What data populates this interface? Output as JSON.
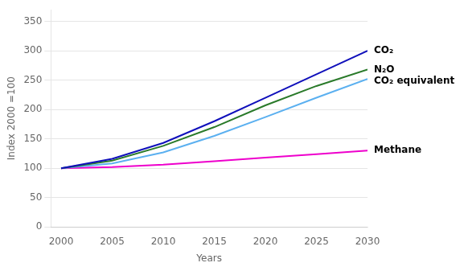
{
  "chart_data": {
    "type": "line",
    "x": [
      2000,
      2005,
      2010,
      2015,
      2020,
      2025,
      2030
    ],
    "series": [
      {
        "name": "CO₂",
        "color": "#1010bb",
        "values": [
          100,
          116,
          143,
          180,
          220,
          260,
          300
        ]
      },
      {
        "name": "N₂O",
        "color": "#2a7a2a",
        "values": [
          100,
          113,
          138,
          170,
          207,
          240,
          268
        ]
      },
      {
        "name": "CO₂ equivalent",
        "color": "#5bb0f0",
        "values": [
          100,
          108,
          127,
          155,
          187,
          220,
          252
        ]
      },
      {
        "name": "Methane",
        "color": "#ee00cc",
        "values": [
          100,
          102,
          106,
          112,
          118,
          124,
          130
        ]
      }
    ],
    "xlabel": "Years",
    "ylabel": "Index 2000 =100",
    "xlim": [
      1999,
      2030
    ],
    "xticks": [
      2000,
      2005,
      2010,
      2015,
      2020,
      2025,
      2030
    ],
    "ylim": [
      0,
      370
    ],
    "yticks": [
      0,
      50,
      100,
      150,
      200,
      250,
      300,
      350
    ],
    "grid": true
  }
}
